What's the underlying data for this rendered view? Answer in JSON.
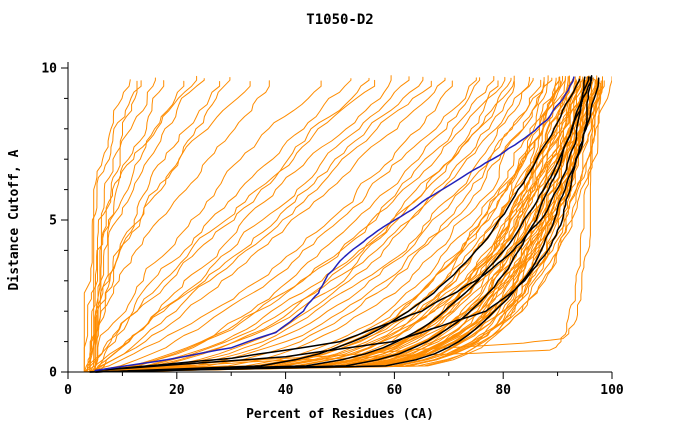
{
  "chart_data": {
    "type": "line",
    "title": "T1050-D2",
    "xlabel": "Percent of Residues (CA)",
    "ylabel": "Distance Cutoff, A",
    "xlim": [
      0,
      100
    ],
    "ylim": [
      0,
      10
    ],
    "x_axis": {
      "label": "Percent of Residues (CA)",
      "min": 0,
      "max": 100,
      "major_ticks": [
        0,
        20,
        40,
        60,
        80,
        100
      ],
      "minor_tick_step": 10
    },
    "y_axis": {
      "label": "Distance Cutoff, A",
      "min": 0,
      "max": 10,
      "major_ticks": [
        0,
        5,
        10
      ],
      "minor_tick_step": 1
    },
    "grid": false,
    "legend": "none",
    "colors": {
      "models": "#ff8c00",
      "reference": "#000000",
      "highlight": "#2222bb",
      "axis": "#000000",
      "background": "#ffffff"
    },
    "curve_groups": [
      {
        "name": "orange-models",
        "color_key": "models",
        "width": 1,
        "wiggle": 1.3,
        "curves": [
          [
            4,
            97,
            0.12
          ],
          [
            5,
            95,
            0.15
          ],
          [
            3,
            98,
            0.13
          ],
          [
            4,
            92,
            0.2
          ],
          [
            5,
            96,
            0.18
          ],
          [
            4,
            99,
            0.11
          ],
          [
            3,
            94,
            0.22
          ],
          [
            5,
            97,
            0.16
          ],
          [
            4,
            90,
            0.24
          ],
          [
            3,
            96,
            0.14
          ],
          [
            5,
            93,
            0.19
          ],
          [
            4,
            95,
            0.17
          ],
          [
            3,
            97,
            0.12
          ],
          [
            5,
            98,
            0.13
          ],
          [
            4,
            94,
            0.21
          ],
          [
            3,
            92,
            0.25
          ],
          [
            5,
            95,
            0.15
          ],
          [
            4,
            96,
            0.14
          ],
          [
            3,
            98,
            0.12
          ],
          [
            5,
            91,
            0.26
          ],
          [
            4,
            93,
            0.2
          ],
          [
            3,
            95,
            0.18
          ],
          [
            5,
            97,
            0.13
          ],
          [
            4,
            98,
            0.12
          ],
          [
            3,
            93,
            0.23
          ],
          [
            5,
            94,
            0.19
          ],
          [
            4,
            96,
            0.15
          ],
          [
            3,
            97,
            0.14
          ],
          [
            5,
            92,
            0.24
          ],
          [
            4,
            95,
            0.16
          ],
          [
            3,
            99,
            0.11
          ],
          [
            5,
            96,
            0.17
          ],
          [
            4,
            91,
            0.27
          ],
          [
            3,
            94,
            0.2
          ],
          [
            5,
            98,
            0.12
          ],
          [
            4,
            97,
            0.15
          ],
          [
            3,
            90,
            0.28
          ],
          [
            5,
            95,
            0.18
          ],
          [
            4,
            94,
            0.19
          ],
          [
            3,
            96,
            0.16
          ],
          [
            5,
            99,
            0.12
          ],
          [
            4,
            92,
            0.23
          ],
          [
            3,
            95,
            0.17
          ],
          [
            5,
            93,
            0.22
          ],
          [
            4,
            98,
            0.13
          ],
          [
            3,
            91,
            0.26
          ],
          [
            5,
            96,
            0.15
          ],
          [
            4,
            97,
            0.14
          ],
          [
            3,
            89,
            0.3
          ],
          [
            5,
            94,
            0.2
          ],
          [
            4,
            96,
            0.13
          ],
          [
            3,
            98,
            0.14
          ],
          [
            5,
            92,
            0.21
          ],
          [
            4,
            95,
            0.19
          ],
          [
            3,
            97,
            0.16
          ],
          [
            4,
            88,
            0.4
          ],
          [
            5,
            85,
            0.45
          ],
          [
            3,
            90,
            0.38
          ],
          [
            4,
            82,
            0.5
          ],
          [
            5,
            87,
            0.42
          ],
          [
            3,
            80,
            0.55
          ],
          [
            4,
            86,
            0.48
          ],
          [
            5,
            78,
            0.6
          ],
          [
            3,
            84,
            0.52
          ],
          [
            4,
            76,
            0.65
          ],
          [
            5,
            89,
            0.36
          ],
          [
            3,
            75,
            0.7
          ],
          [
            4,
            83,
            0.47
          ],
          [
            5,
            81,
            0.58
          ],
          [
            4,
            70,
            0.9
          ],
          [
            5,
            65,
            1.0
          ],
          [
            3,
            60,
            1.1
          ],
          [
            4,
            72,
            0.85
          ],
          [
            5,
            55,
            1.2
          ],
          [
            3,
            68,
            0.95
          ],
          [
            4,
            50,
            1.3
          ],
          [
            5,
            62,
            1.05
          ],
          [
            3,
            58,
            1.15
          ],
          [
            4,
            30,
            1.8
          ],
          [
            5,
            22,
            2.2
          ],
          [
            3,
            16,
            3.0
          ],
          [
            4,
            12,
            3.5
          ],
          [
            5,
            26,
            2.0
          ],
          [
            3,
            35,
            1.6
          ],
          [
            4,
            18,
            2.6
          ],
          [
            5,
            14,
            3.2
          ],
          [
            3,
            40,
            1.5
          ],
          [
            4,
            20,
            2.4
          ],
          [
            5,
            32,
            1.7
          ],
          [
            3,
            24,
            2.1
          ],
          {
            "points": [
              [
                8,
                0.08
              ],
              [
                20,
                0.2
              ],
              [
                35,
                0.35
              ],
              [
                57,
                0.5
              ],
              [
                75,
                0.62
              ],
              [
                88,
                0.72
              ],
              [
                91,
                1.0
              ],
              [
                92,
                1.6
              ],
              [
                93,
                2.5
              ],
              [
                94,
                4.0
              ],
              [
                95,
                6.0
              ],
              [
                96,
                8.0
              ],
              [
                96.5,
                9.65
              ]
            ]
          },
          {
            "points": [
              [
                6,
                0.05
              ],
              [
                25,
                0.3
              ],
              [
                45,
                0.5
              ],
              [
                65,
                0.75
              ],
              [
                85,
                0.95
              ],
              [
                92,
                1.1
              ],
              [
                94,
                2.2
              ],
              [
                95,
                4.5
              ],
              [
                96,
                7.0
              ],
              [
                97,
                9.6
              ]
            ]
          }
        ]
      },
      {
        "name": "black-reference",
        "color_key": "reference",
        "width": 1.5,
        "wiggle": 0.45,
        "curves": [
          [
            4,
            96,
            0.17
          ],
          [
            5,
            97,
            0.22
          ],
          [
            4,
            98,
            0.14
          ],
          [
            5,
            95,
            0.28
          ],
          {
            "points": [
              [
                5,
                0.05
              ],
              [
                40,
                0.5
              ],
              [
                60,
                1.0
              ],
              [
                77,
                2.0
              ],
              [
                84,
                3.0
              ],
              [
                88,
                4.0
              ],
              [
                91,
                5.0
              ],
              [
                93,
                6.5
              ],
              [
                95,
                8.0
              ],
              [
                96,
                9.7
              ]
            ]
          },
          {
            "points": [
              [
                5,
                0.05
              ],
              [
                30,
                0.45
              ],
              [
                50,
                1.0
              ],
              [
                65,
                2.0
              ],
              [
                75,
                3.0
              ],
              [
                82,
                4.0
              ],
              [
                87,
                5.0
              ],
              [
                90,
                6.0
              ],
              [
                93,
                7.5
              ],
              [
                95,
                9.7
              ]
            ]
          }
        ]
      },
      {
        "name": "blue-highlight",
        "color_key": "highlight",
        "width": 1.5,
        "wiggle": 0.35,
        "curves": [
          {
            "points": [
              [
                5,
                0.05
              ],
              [
                18,
                0.4
              ],
              [
                30,
                0.8
              ],
              [
                38,
                1.3
              ],
              [
                43,
                2.0
              ],
              [
                46,
                2.6
              ],
              [
                48,
                3.2
              ],
              [
                51,
                3.8
              ],
              [
                55,
                4.4
              ],
              [
                60,
                5.0
              ],
              [
                66,
                5.7
              ],
              [
                72,
                6.4
              ],
              [
                78,
                7.0
              ],
              [
                84,
                7.7
              ],
              [
                88,
                8.3
              ],
              [
                91,
                9.0
              ],
              [
                93,
                9.7
              ]
            ]
          }
        ]
      }
    ]
  }
}
